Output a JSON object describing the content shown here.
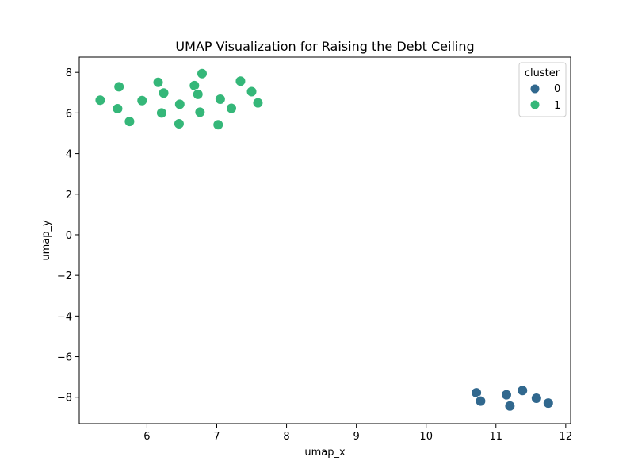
{
  "chart_data": {
    "type": "scatter",
    "title": "UMAP Visualization for Raising the Debt Ceiling",
    "xlabel": "umap_x",
    "ylabel": "umap_y",
    "xlim": [
      5.03,
      12.07
    ],
    "ylim": [
      -9.3,
      8.75
    ],
    "xticks": [
      6,
      7,
      8,
      9,
      10,
      11,
      12
    ],
    "yticks": [
      -8,
      -6,
      -4,
      -2,
      0,
      2,
      4,
      6,
      8
    ],
    "grid": false,
    "legend": {
      "title": "cluster",
      "placement": "top-right",
      "entries": [
        "0",
        "1"
      ]
    },
    "series": [
      {
        "name": "0",
        "color": "#31688e",
        "points": [
          [
            10.72,
            -7.78
          ],
          [
            10.78,
            -8.19
          ],
          [
            11.15,
            -7.88
          ],
          [
            11.2,
            -8.43
          ],
          [
            11.38,
            -7.67
          ],
          [
            11.58,
            -8.05
          ],
          [
            11.75,
            -8.29
          ]
        ]
      },
      {
        "name": "1",
        "color": "#35b779",
        "points": [
          [
            5.33,
            6.63
          ],
          [
            5.58,
            6.21
          ],
          [
            5.6,
            7.29
          ],
          [
            5.75,
            5.58
          ],
          [
            5.93,
            6.61
          ],
          [
            6.16,
            7.51
          ],
          [
            6.21,
            6.0
          ],
          [
            6.24,
            6.98
          ],
          [
            6.46,
            5.47
          ],
          [
            6.47,
            6.43
          ],
          [
            6.68,
            7.35
          ],
          [
            6.73,
            6.92
          ],
          [
            6.76,
            6.04
          ],
          [
            6.79,
            7.94
          ],
          [
            7.02,
            5.42
          ],
          [
            7.05,
            6.68
          ],
          [
            7.21,
            6.23
          ],
          [
            7.34,
            7.57
          ],
          [
            7.5,
            7.05
          ],
          [
            7.59,
            6.5
          ]
        ]
      }
    ]
  }
}
